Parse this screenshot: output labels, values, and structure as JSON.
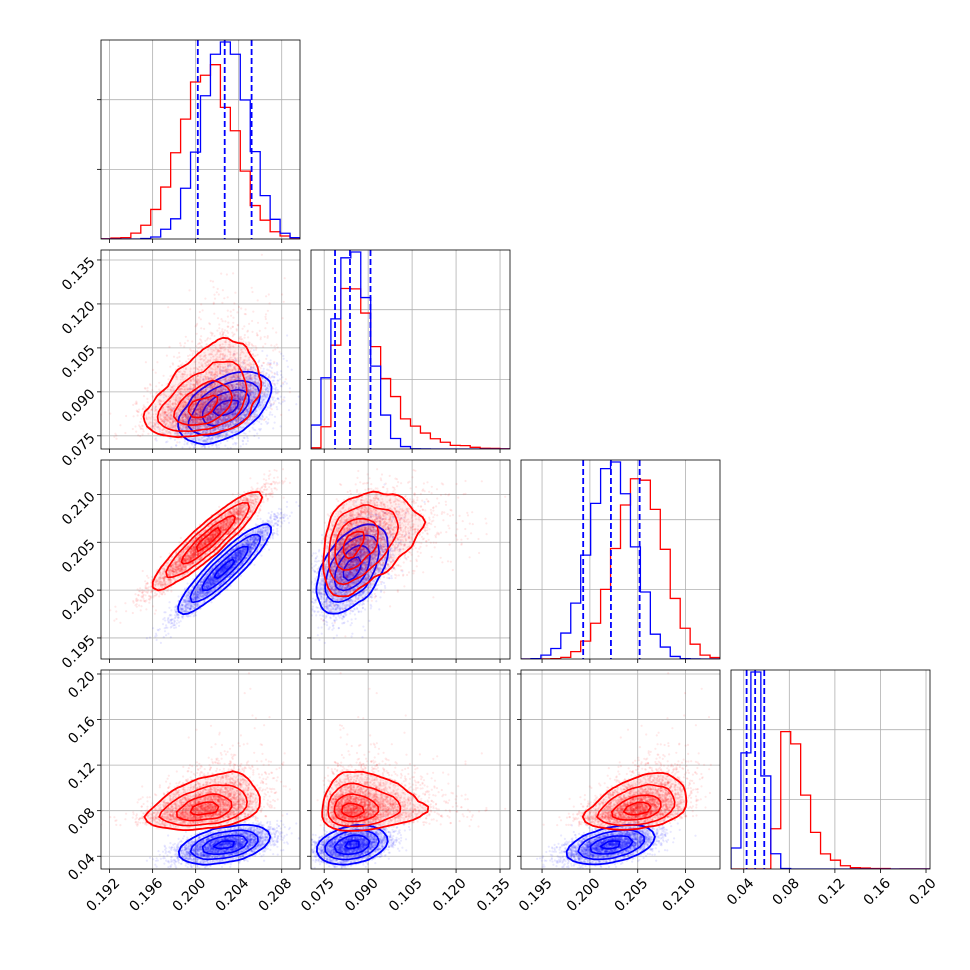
{
  "chart_data": {
    "type": "corner",
    "title": "",
    "colors": {
      "red": "#ff0000",
      "blue": "#0000ff"
    },
    "grid": true,
    "parameters": [
      {
        "index": 0,
        "range": [
          0.1912,
          0.2097
        ],
        "ticks": [
          "0.192",
          "0.196",
          "0.200",
          "0.204",
          "0.208"
        ]
      },
      {
        "index": 1,
        "range": [
          0.0705,
          0.1384
        ],
        "ticks": [
          "0.075",
          "0.090",
          "0.105",
          "0.120",
          "0.135"
        ]
      },
      {
        "index": 2,
        "range": [
          0.1928,
          0.2136
        ],
        "ticks": [
          "0.195",
          "0.200",
          "0.205",
          "0.210"
        ]
      },
      {
        "index": 3,
        "range": [
          0.0288,
          0.2035
        ],
        "ticks": [
          "0.04",
          "0.08",
          "0.12",
          "0.16",
          "0.20"
        ]
      }
    ],
    "series": [
      {
        "color": "#ff0000",
        "mean": [
          0.2011,
          0.0885,
          0.2052,
          0.085
        ],
        "std": [
          0.0025,
          0.0085,
          0.0025,
          0.012
        ],
        "corr": [
          [
            1.0,
            0.45,
            0.95,
            0.4
          ],
          [
            0.45,
            1.0,
            0.4,
            0.05
          ],
          [
            0.95,
            0.4,
            1.0,
            0.4
          ],
          [
            0.4,
            0.05,
            0.4,
            1.0
          ]
        ],
        "skew": [
          0,
          1,
          0,
          1
        ]
      },
      {
        "color": "#0000ff",
        "mean": [
          0.2027,
          0.0845,
          0.2022,
          0.05
        ],
        "std": [
          0.0021,
          0.006,
          0.0023,
          0.0075
        ],
        "corr": [
          [
            1.0,
            0.5,
            0.95,
            0.5
          ],
          [
            0.5,
            1.0,
            0.5,
            0.3
          ],
          [
            0.95,
            0.5,
            1.0,
            0.5
          ],
          [
            0.5,
            0.3,
            0.5,
            1.0
          ]
        ],
        "skew": [
          0,
          0,
          0,
          0
        ]
      }
    ],
    "quantile_lines": {
      "color": "#0000ff",
      "style": "dashed",
      "values": [
        [
          0.2002,
          0.2027,
          0.2052
        ],
        [
          0.0787,
          0.0838,
          0.0908
        ],
        [
          0.1993,
          0.2022,
          0.2052
        ],
        [
          0.0425,
          0.05,
          0.058
        ]
      ]
    }
  }
}
